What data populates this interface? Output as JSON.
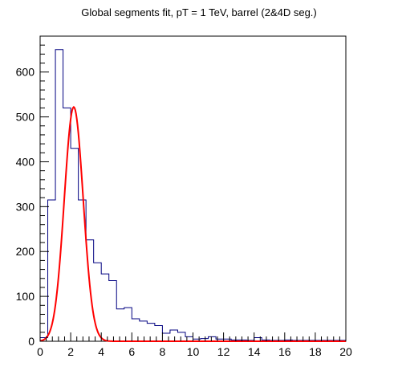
{
  "chart_data": {
    "type": "histogram",
    "title": "Global segments fit, pT = 1 TeV, barrel (2&4D seg.)",
    "xlabel": "",
    "ylabel": "",
    "xlim": [
      0,
      20
    ],
    "ylim": [
      0,
      680
    ],
    "grid": false,
    "x_ticks": [
      0,
      2,
      4,
      6,
      8,
      10,
      12,
      14,
      16,
      18,
      20
    ],
    "y_ticks": [
      0,
      100,
      200,
      300,
      400,
      500,
      600
    ],
    "histogram": {
      "name": "",
      "color": "#000080",
      "bin_edges": [
        0,
        0.5,
        1,
        1.5,
        2,
        2.5,
        3,
        3.5,
        4,
        4.5,
        5,
        5.5,
        6,
        6.5,
        7,
        7.5,
        8,
        8.5,
        9,
        9.5,
        10,
        10.5,
        11,
        11.5,
        12,
        12.5,
        13,
        13.5,
        14,
        14.5,
        15,
        15.5,
        16,
        16.5,
        17,
        17.5,
        18,
        18.5,
        19,
        19.5,
        20
      ],
      "counts": [
        8,
        315,
        650,
        520,
        430,
        315,
        226,
        175,
        150,
        135,
        72,
        75,
        50,
        45,
        40,
        35,
        18,
        25,
        20,
        10,
        5,
        6,
        10,
        5,
        5,
        3,
        3,
        2,
        8,
        3,
        2,
        2,
        3,
        2,
        2,
        2,
        2,
        2,
        2,
        2
      ]
    },
    "fit": {
      "type": "gaussian",
      "color": "#ff0000",
      "amplitude": 522,
      "mean": 2.2,
      "sigma": 0.62,
      "x_range": [
        0,
        20
      ]
    }
  }
}
